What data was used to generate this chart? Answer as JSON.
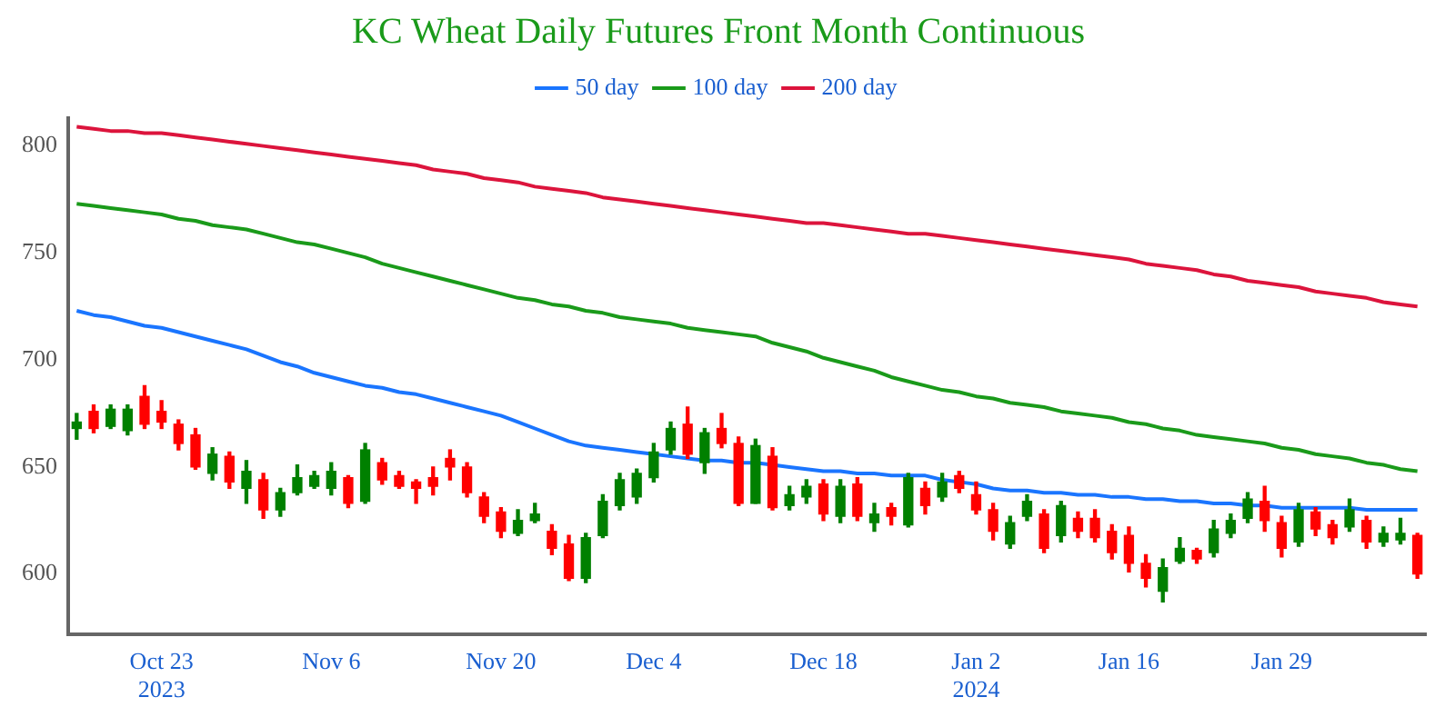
{
  "chart_data": {
    "type": "candlestick",
    "title": "KC Wheat Daily Futures Front Month Continuous",
    "categories": [
      null,
      null,
      null,
      null,
      null,
      "Oct 23\n2023",
      null,
      null,
      null,
      null,
      null,
      null,
      null,
      null,
      null,
      "Nov 6",
      null,
      null,
      null,
      null,
      null,
      null,
      null,
      null,
      null,
      "Nov 20",
      null,
      null,
      null,
      null,
      null,
      null,
      null,
      null,
      "Dec 4",
      null,
      null,
      null,
      null,
      null,
      null,
      null,
      null,
      null,
      "Dec 18",
      null,
      null,
      null,
      null,
      null,
      null,
      null,
      null,
      "Jan 2\n2024",
      null,
      null,
      null,
      null,
      null,
      null,
      null,
      null,
      "Jan 16",
      null,
      null,
      null,
      null,
      null,
      null,
      null,
      null,
      "Jan 29",
      null,
      null,
      null,
      null,
      null,
      null,
      null,
      null
    ],
    "ohlc": [
      [
        668,
        675,
        663,
        671
      ],
      [
        676,
        679,
        666,
        668
      ],
      [
        669,
        679,
        668,
        677
      ],
      [
        667,
        679,
        665,
        677
      ],
      [
        683,
        688,
        668,
        670
      ],
      [
        676,
        681,
        668,
        671
      ],
      [
        670,
        672,
        658,
        661
      ],
      [
        665,
        668,
        649,
        650
      ],
      [
        647,
        659,
        644,
        656
      ],
      [
        655,
        657,
        640,
        643
      ],
      [
        640,
        653,
        633,
        648
      ],
      [
        644,
        647,
        626,
        630
      ],
      [
        630,
        640,
        627,
        638
      ],
      [
        638,
        651,
        637,
        645
      ],
      [
        641,
        648,
        640,
        646
      ],
      [
        640,
        652,
        637,
        648
      ],
      [
        645,
        646,
        631,
        633
      ],
      [
        634,
        661,
        633,
        658
      ],
      [
        652,
        654,
        642,
        644
      ],
      [
        646,
        648,
        640,
        641
      ],
      [
        643,
        644,
        633,
        640
      ],
      [
        645,
        650,
        637,
        641
      ],
      [
        654,
        658,
        644,
        650
      ],
      [
        650,
        652,
        636,
        638
      ],
      [
        636,
        638,
        624,
        627
      ],
      [
        629,
        631,
        617,
        620
      ],
      [
        619,
        630,
        618,
        625
      ],
      [
        625,
        633,
        624,
        628
      ],
      [
        620,
        623,
        609,
        612
      ],
      [
        614,
        618,
        597,
        598
      ],
      [
        598,
        619,
        596,
        617
      ],
      [
        618,
        637,
        617,
        634
      ],
      [
        632,
        647,
        630,
        644
      ],
      [
        636,
        649,
        633,
        647
      ],
      [
        645,
        661,
        643,
        657
      ],
      [
        658,
        671,
        656,
        668
      ],
      [
        670,
        678,
        654,
        656
      ],
      [
        652,
        668,
        647,
        666
      ],
      [
        668,
        675,
        659,
        661
      ],
      [
        661,
        664,
        632,
        633
      ],
      [
        633,
        663,
        633,
        660
      ],
      [
        655,
        659,
        630,
        631
      ],
      [
        632,
        641,
        630,
        637
      ],
      [
        636,
        644,
        633,
        641
      ],
      [
        642,
        644,
        625,
        628
      ],
      [
        627,
        644,
        624,
        641
      ],
      [
        642,
        645,
        625,
        627
      ],
      [
        624,
        633,
        620,
        628
      ],
      [
        631,
        633,
        623,
        627
      ],
      [
        623,
        647,
        622,
        645
      ],
      [
        640,
        643,
        628,
        632
      ],
      [
        636,
        647,
        634,
        643
      ],
      [
        646,
        648,
        638,
        640
      ],
      [
        637,
        643,
        628,
        630
      ],
      [
        630,
        633,
        616,
        620
      ],
      [
        614,
        627,
        612,
        624
      ],
      [
        627,
        637,
        625,
        634
      ],
      [
        628,
        630,
        610,
        612
      ],
      [
        618,
        634,
        615,
        632
      ],
      [
        626,
        629,
        617,
        620
      ],
      [
        626,
        630,
        615,
        617
      ],
      [
        620,
        623,
        607,
        610
      ],
      [
        618,
        622,
        601,
        605
      ],
      [
        605,
        609,
        594,
        598
      ],
      [
        592,
        607,
        587,
        603
      ],
      [
        606,
        617,
        605,
        612
      ],
      [
        611,
        612,
        605,
        607
      ],
      [
        610,
        625,
        608,
        621
      ],
      [
        619,
        628,
        617,
        625
      ],
      [
        626,
        638,
        624,
        635
      ],
      [
        634,
        641,
        620,
        625
      ],
      [
        624,
        627,
        608,
        612
      ],
      [
        615,
        633,
        613,
        630
      ],
      [
        629,
        631,
        618,
        621
      ],
      [
        623,
        625,
        614,
        617
      ],
      [
        622,
        635,
        620,
        630
      ],
      [
        625,
        627,
        612,
        615
      ],
      [
        615,
        622,
        613,
        619
      ],
      [
        616,
        626,
        614,
        619
      ],
      [
        618,
        619,
        598,
        600
      ]
    ],
    "colors": [
      "#008000",
      "#ff0000",
      "#008000",
      "#008000",
      "#ff0000",
      "#ff0000",
      "#ff0000",
      "#ff0000",
      "#008000",
      "#ff0000",
      "#008000",
      "#ff0000",
      "#008000",
      "#008000",
      "#008000",
      "#008000",
      "#ff0000",
      "#008000",
      "#ff0000",
      "#ff0000",
      "#ff0000",
      "#ff0000",
      "#ff0000",
      "#ff0000",
      "#ff0000",
      "#ff0000",
      "#008000",
      "#008000",
      "#ff0000",
      "#ff0000",
      "#008000",
      "#008000",
      "#008000",
      "#008000",
      "#008000",
      "#008000",
      "#ff0000",
      "#008000",
      "#ff0000",
      "#ff0000",
      "#008000",
      "#ff0000",
      "#008000",
      "#008000",
      "#ff0000",
      "#008000",
      "#ff0000",
      "#008000",
      "#ff0000",
      "#008000",
      "#ff0000",
      "#008000",
      "#ff0000",
      "#ff0000",
      "#ff0000",
      "#008000",
      "#008000",
      "#ff0000",
      "#008000",
      "#ff0000",
      "#ff0000",
      "#ff0000",
      "#ff0000",
      "#ff0000",
      "#008000",
      "#008000",
      "#ff0000",
      "#008000",
      "#008000",
      "#008000",
      "#ff0000",
      "#ff0000",
      "#008000",
      "#ff0000",
      "#ff0000",
      "#008000",
      "#ff0000",
      "#008000",
      "#008000",
      "#ff0000"
    ],
    "series": [
      {
        "name": "50 day",
        "type": "line",
        "color": "#1a75ff",
        "values": [
          723,
          721,
          720,
          718,
          716,
          715,
          713,
          711,
          709,
          707,
          705,
          702,
          699,
          697,
          694,
          692,
          690,
          688,
          687,
          685,
          684,
          682,
          680,
          678,
          676,
          674,
          671,
          668,
          665,
          662,
          660,
          659,
          658,
          657,
          656,
          655,
          654,
          653,
          653,
          652,
          652,
          651,
          650,
          649,
          648,
          648,
          647,
          647,
          646,
          646,
          646,
          644,
          643,
          642,
          640,
          639,
          639,
          638,
          638,
          637,
          637,
          636,
          636,
          635,
          635,
          634,
          634,
          633,
          633,
          632,
          632,
          631,
          631,
          631,
          631,
          631,
          630,
          630,
          630,
          630
        ]
      },
      {
        "name": "100 day",
        "type": "line",
        "color": "#1a9a1a",
        "values": [
          773,
          772,
          771,
          770,
          769,
          768,
          766,
          765,
          763,
          762,
          761,
          759,
          757,
          755,
          754,
          752,
          750,
          748,
          745,
          743,
          741,
          739,
          737,
          735,
          733,
          731,
          729,
          728,
          726,
          725,
          723,
          722,
          720,
          719,
          718,
          717,
          715,
          714,
          713,
          712,
          711,
          708,
          706,
          704,
          701,
          699,
          697,
          695,
          692,
          690,
          688,
          686,
          685,
          683,
          682,
          680,
          679,
          678,
          676,
          675,
          674,
          673,
          671,
          670,
          668,
          667,
          665,
          664,
          663,
          662,
          661,
          659,
          658,
          656,
          655,
          654,
          652,
          651,
          649,
          648
        ]
      },
      {
        "name": "200 day",
        "type": "line",
        "color": "#dc143c",
        "values": [
          809,
          808,
          807,
          807,
          806,
          806,
          805,
          804,
          803,
          802,
          801,
          800,
          799,
          798,
          797,
          796,
          795,
          794,
          793,
          792,
          791,
          789,
          788,
          787,
          785,
          784,
          783,
          781,
          780,
          779,
          778,
          776,
          775,
          774,
          773,
          772,
          771,
          770,
          769,
          768,
          767,
          766,
          765,
          764,
          764,
          763,
          762,
          761,
          760,
          759,
          759,
          758,
          757,
          756,
          755,
          754,
          753,
          752,
          751,
          750,
          749,
          748,
          747,
          745,
          744,
          743,
          742,
          740,
          739,
          737,
          736,
          735,
          734,
          732,
          731,
          730,
          729,
          727,
          726,
          725
        ]
      }
    ],
    "ylim": [
      572,
      813
    ],
    "yticks": [
      600,
      650,
      700,
      750,
      800
    ],
    "legend": "top",
    "marker": "none"
  }
}
